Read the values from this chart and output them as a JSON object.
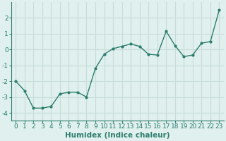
{
  "x": [
    0,
    1,
    2,
    3,
    4,
    5,
    6,
    7,
    8,
    9,
    10,
    11,
    12,
    13,
    14,
    15,
    16,
    17,
    18,
    19,
    20,
    21,
    22,
    23
  ],
  "y": [
    -2.0,
    -2.6,
    -3.7,
    -3.7,
    -3.6,
    -2.8,
    -2.7,
    -2.7,
    -3.0,
    -1.2,
    -0.3,
    0.05,
    0.2,
    0.35,
    0.2,
    -0.3,
    -0.35,
    1.15,
    0.25,
    -0.45,
    -0.35,
    0.4,
    0.5,
    2.5
  ],
  "line_color": "#2e7d6e",
  "marker": "o",
  "marker_size": 2.0,
  "line_width": 1.0,
  "bg_color": "#dff0ee",
  "grid_color": "#c8dcd8",
  "xlabel": "Humidex (Indice chaleur)",
  "xlabel_fontsize": 7.5,
  "tick_fontsize": 6.5,
  "xlim": [
    -0.5,
    23.5
  ],
  "ylim": [
    -4.5,
    3.0
  ],
  "yticks": [
    -4,
    -3,
    -2,
    -1,
    0,
    1,
    2
  ],
  "xticks": [
    0,
    1,
    2,
    3,
    4,
    5,
    6,
    7,
    8,
    9,
    10,
    11,
    12,
    13,
    14,
    15,
    16,
    17,
    18,
    19,
    20,
    21,
    22,
    23
  ],
  "spine_color": "#2e7d6e",
  "grid_alpha": 1.0
}
